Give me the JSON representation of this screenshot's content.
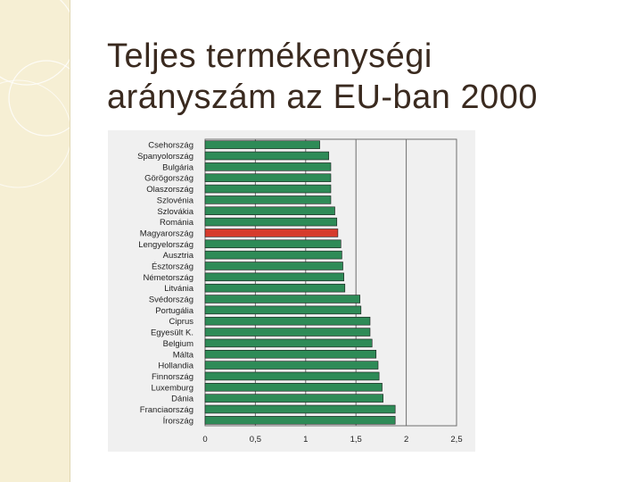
{
  "slide": {
    "title_line1": "Teljes termékenységi",
    "title_line2": "arányszám az EU-ban 2000"
  },
  "theme": {
    "bar_color": "#2e8b57",
    "highlight_color": "#d63b2c",
    "band_color": "#f6efd4"
  },
  "chart_data": {
    "type": "bar",
    "orientation": "horizontal",
    "categories": [
      "Csehország",
      "Spanyolország",
      "Bulgária",
      "Görögország",
      "Olaszország",
      "Szlovénia",
      "Szlovákia",
      "Románia",
      "Magyarország",
      "Lengyelország",
      "Ausztria",
      "Észtország",
      "Németország",
      "Litvánia",
      "Svédország",
      "Portugália",
      "Ciprus",
      "Egyesült K.",
      "Belgium",
      "Málta",
      "Hollandia",
      "Finnország",
      "Luxemburg",
      "Dánia",
      "Franciaország",
      "Írország"
    ],
    "values": [
      1.14,
      1.23,
      1.25,
      1.25,
      1.25,
      1.25,
      1.29,
      1.31,
      1.32,
      1.35,
      1.36,
      1.37,
      1.38,
      1.39,
      1.54,
      1.55,
      1.64,
      1.64,
      1.66,
      1.7,
      1.72,
      1.73,
      1.76,
      1.77,
      1.89,
      1.89
    ],
    "highlight": "Magyarország",
    "xlim": [
      0,
      2.5
    ],
    "xticks": [
      "0",
      "0,5",
      "1",
      "1,5",
      "2",
      "2,5"
    ],
    "grid": true,
    "title": "",
    "xlabel": "",
    "ylabel": ""
  }
}
